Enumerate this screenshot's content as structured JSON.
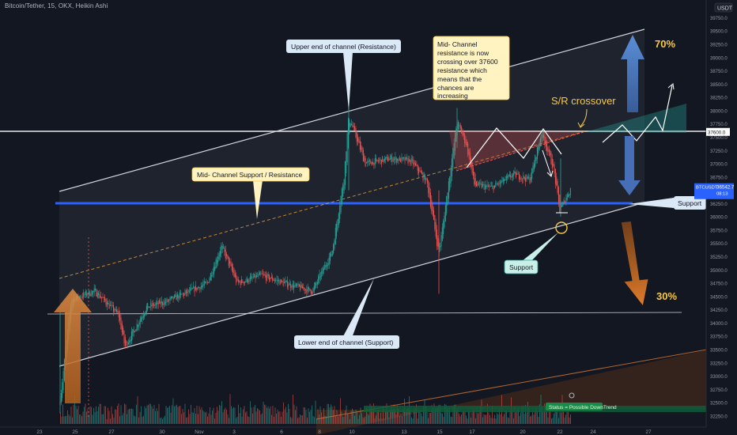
{
  "header": {
    "symbol_title": "Bitcoin/Tether, 15, OKX, Heikin Ashi",
    "currency": "USDT"
  },
  "chart_data": {
    "type": "candlestick",
    "title": "Bitcoin/Tether, 15, OKX, Heikin Ashi",
    "y_ticks": [
      39750,
      39500,
      39250,
      39000,
      38750,
      38500,
      38250,
      38000,
      37750,
      37500,
      37250,
      37000,
      36750,
      36500,
      36250,
      36000,
      35750,
      35500,
      35250,
      35000,
      34750,
      34500,
      34250,
      34000,
      33750,
      33500,
      33250,
      33000,
      32750,
      32500,
      32250
    ],
    "ylim": [
      32100,
      39950
    ],
    "x_labels": [
      "23",
      "25",
      "27",
      "30",
      "Nov",
      "3",
      "6",
      "8",
      "10",
      "13",
      "15",
      "17",
      "20",
      "22",
      "24",
      "27"
    ],
    "price_marks": [
      {
        "value": 37600,
        "label": "37600.0",
        "color": "#ffffff"
      },
      {
        "value": 36542.7,
        "label": "36542.7",
        "sub": "BTCUSDT",
        "time": "08:13",
        "color": "#2962ff"
      }
    ],
    "series": [
      {
        "name": "BTCUSDT",
        "approx_path": [
          [
            75,
            32400
          ],
          [
            90,
            34450
          ],
          [
            120,
            34600
          ],
          [
            150,
            34150
          ],
          [
            158,
            33550
          ],
          [
            185,
            34300
          ],
          [
            210,
            34400
          ],
          [
            240,
            34600
          ],
          [
            262,
            34750
          ],
          [
            280,
            35450
          ],
          [
            300,
            34750
          ],
          [
            330,
            34900
          ],
          [
            360,
            34750
          ],
          [
            395,
            34600
          ],
          [
            420,
            35350
          ],
          [
            435,
            36750
          ],
          [
            441,
            37900
          ],
          [
            462,
            37000
          ],
          [
            495,
            37100
          ],
          [
            520,
            37050
          ],
          [
            540,
            36650
          ],
          [
            555,
            35300
          ],
          [
            565,
            36400
          ],
          [
            578,
            37800
          ],
          [
            590,
            37350
          ],
          [
            600,
            36600
          ],
          [
            622,
            36550
          ],
          [
            650,
            36800
          ],
          [
            670,
            36700
          ],
          [
            685,
            37600
          ],
          [
            700,
            36900
          ],
          [
            708,
            36100
          ],
          [
            715,
            36350
          ],
          [
            722,
            36542.7
          ]
        ]
      }
    ],
    "annotations": {
      "callout_upper": "Upper end of channel (Resistance)",
      "callout_mid": "Mid- Channel Support / Resistance",
      "callout_lower": "Lower end of channel (Support)",
      "callout_note": [
        "Mid- Channel",
        "resistance is now",
        "crossing over 37600",
        "resistance which",
        "means that the",
        "chances are",
        "increasing"
      ],
      "sr_crossover": "S/R crossover",
      "pct_up": "70%",
      "pct_down": "30%",
      "support_right": "Support",
      "support_bottom": "Support",
      "status_label": "Status = Possible DownTrend"
    },
    "colors": {
      "up": "#26a69a",
      "down": "#ef5350",
      "channel": "#d1d4dc",
      "up_arrow": "#5b8ed6",
      "down_arrow": "#e07b2a",
      "highlight": "#f7c948",
      "support_line": "#2962ff"
    },
    "grid": false
  }
}
